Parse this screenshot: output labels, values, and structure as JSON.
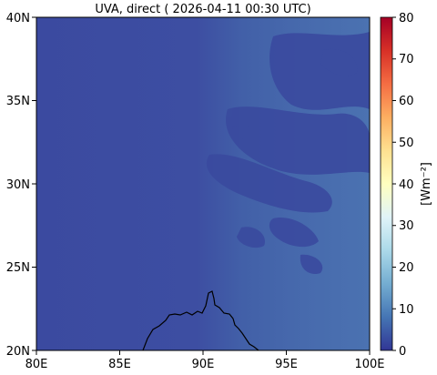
{
  "title": "UVA, direct ( 2026-04-11 00:30 UTC)",
  "map": {
    "lon_ticks": [
      "80E",
      "85E",
      "90E",
      "95E",
      "100E"
    ],
    "lat_ticks": [
      "20N",
      "25N",
      "30N",
      "35N",
      "40N"
    ],
    "lon_range": [
      80,
      100
    ],
    "lat_range": [
      20,
      40
    ],
    "field_colors": {
      "west": "#3b4aa0",
      "east": "#4a6fb0",
      "cloud": "#3c4da2"
    }
  },
  "colorbar": {
    "label": "[Wm⁻²]",
    "ticks": [
      "0",
      "10",
      "20",
      "30",
      "40",
      "50",
      "60",
      "70",
      "80"
    ],
    "range": [
      0,
      80
    ],
    "colormap": "RdYlBu_r",
    "stops": [
      "#313695",
      "#4575b4",
      "#74add1",
      "#abd9e9",
      "#e0f3f8",
      "#ffffbf",
      "#fee090",
      "#fdae61",
      "#f46d43",
      "#d73027",
      "#a50026"
    ]
  }
}
